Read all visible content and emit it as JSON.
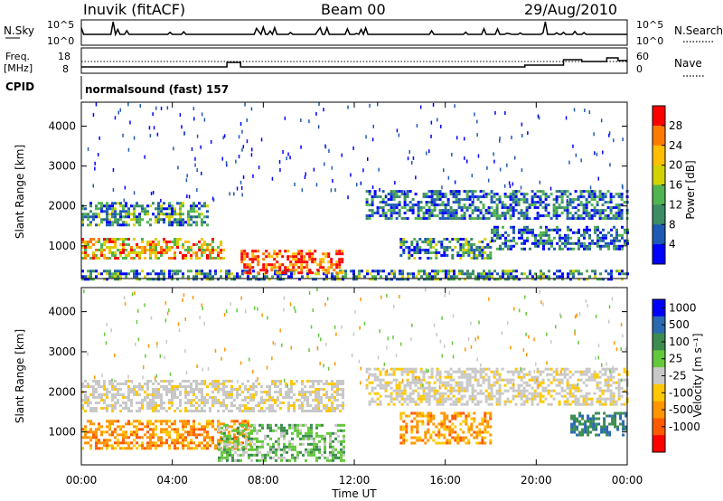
{
  "header": {
    "station": "Inuvik (fitACF)",
    "beam": "Beam 00",
    "date": "29/Aug/2010"
  },
  "strip": {
    "nsky_label": "N.Sky",
    "nsky_ticks": [
      "10^5",
      "10^0"
    ],
    "nsearch_label": "N.Search",
    "nsearch_ticks": [
      "10^5",
      "10^0"
    ],
    "freq_label_1": "Freq.",
    "freq_label_2": "[MHz]",
    "freq_ticks": [
      "18",
      "8"
    ],
    "nave_label": "Nave",
    "nave_ticks": [
      "60",
      "0"
    ],
    "cpid_label": "CPID",
    "cpid_value": "normalsound (fast) 157"
  },
  "chart_data": [
    {
      "type": "heatmap",
      "name": "power",
      "ylabel": "Slant Range [km]",
      "yticks": [
        "4000",
        "3000",
        "2000",
        "1000"
      ],
      "ylim": [
        180,
        4600
      ],
      "colorbar_label": "Power [dB]",
      "colorbar_ticks": [
        "28",
        "24",
        "20",
        "16",
        "12",
        "8",
        "4"
      ],
      "colorbar_colors": [
        "#ff0000",
        "#ff7a00",
        "#ffbe00",
        "#d2d200",
        "#50b450",
        "#3c8c64",
        "#1e5ab4",
        "#0000ff"
      ],
      "bands": [
        {
          "range_km": [
            180,
            400
          ],
          "start_hr": 0.0,
          "end_hr": 24.0,
          "level": "mid"
        },
        {
          "range_km": [
            700,
            1200
          ],
          "start_hr": 0.0,
          "end_hr": 6.3,
          "level": "high"
        },
        {
          "range_km": [
            1500,
            2100
          ],
          "start_hr": 0.0,
          "end_hr": 5.5,
          "level": "mid"
        },
        {
          "range_km": [
            300,
            900
          ],
          "start_hr": 7.0,
          "end_hr": 11.5,
          "level": "max"
        },
        {
          "range_km": [
            700,
            1200
          ],
          "start_hr": 14.0,
          "end_hr": 18.0,
          "level": "mid"
        },
        {
          "range_km": [
            1700,
            2400
          ],
          "start_hr": 12.5,
          "end_hr": 24.0,
          "level": "low"
        },
        {
          "range_km": [
            900,
            1500
          ],
          "start_hr": 18.0,
          "end_hr": 24.0,
          "level": "low"
        }
      ]
    },
    {
      "type": "heatmap",
      "name": "velocity",
      "ylabel": "Slant Range [km]",
      "yticks": [
        "4000",
        "3000",
        "2000",
        "1000"
      ],
      "ylim": [
        180,
        4600
      ],
      "colorbar_label": "Velocity [m s⁻¹]",
      "colorbar_ticks": [
        "1000",
        "500",
        "100",
        "25",
        "-25",
        "-100",
        "-500",
        "-1000"
      ],
      "colorbar_colors": [
        "#0000ff",
        "#2a6ab0",
        "#3c8c50",
        "#64c83c",
        "#c8c8c8",
        "#ffc800",
        "#ff9600",
        "#ff5a00",
        "#ff0000"
      ],
      "bands": [
        {
          "range_km": [
            600,
            1300
          ],
          "start_hr": 0.0,
          "end_hr": 7.5,
          "level": "-100"
        },
        {
          "range_km": [
            1500,
            2300
          ],
          "start_hr": 0.0,
          "end_hr": 11.5,
          "level": "0"
        },
        {
          "range_km": [
            300,
            1200
          ],
          "start_hr": 6.0,
          "end_hr": 11.5,
          "level": "25"
        },
        {
          "range_km": [
            700,
            1500
          ],
          "start_hr": 14.0,
          "end_hr": 18.0,
          "level": "-100"
        },
        {
          "range_km": [
            1700,
            2600
          ],
          "start_hr": 12.5,
          "end_hr": 24.0,
          "level": "0"
        },
        {
          "range_km": [
            900,
            1500
          ],
          "start_hr": 21.5,
          "end_hr": 24.0,
          "level": "100"
        }
      ]
    }
  ],
  "xaxis": {
    "ticks": [
      "00:00",
      "04:00",
      "08:00",
      "12:00",
      "16:00",
      "20:00",
      "00:00"
    ],
    "label": "Time UT"
  }
}
